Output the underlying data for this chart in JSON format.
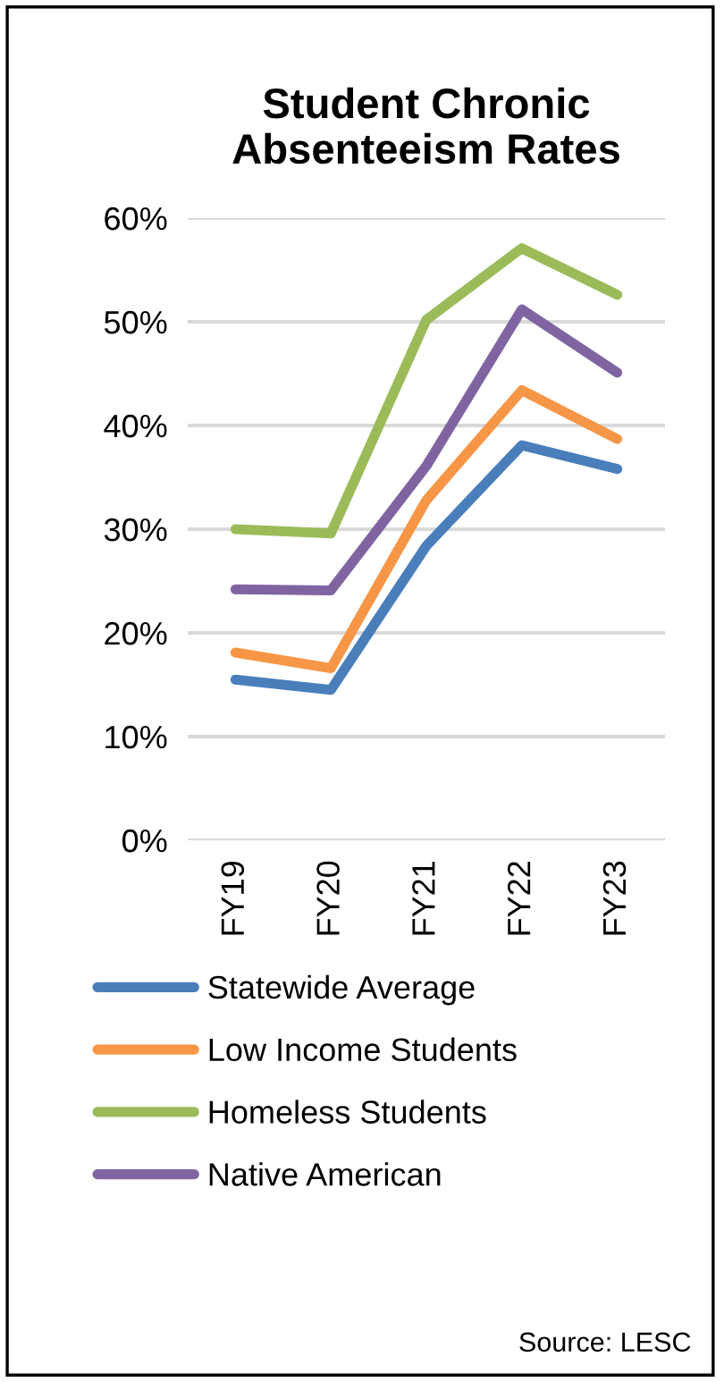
{
  "chart_data": {
    "type": "line",
    "title": "Student Chronic\nAbsenteeism Rates",
    "categories": [
      "FY19",
      "FY20",
      "FY21",
      "FY22",
      "FY23"
    ],
    "series": [
      {
        "name": "Statewide Average",
        "color": "#4a7ebb",
        "values": [
          15.5,
          14.5,
          28.4,
          38.1,
          35.8
        ]
      },
      {
        "name": "Low Income Students",
        "color": "#f79646",
        "values": [
          18.1,
          16.6,
          32.8,
          43.4,
          38.7
        ]
      },
      {
        "name": "Homeless Students",
        "color": "#9bbb59",
        "values": [
          30.0,
          29.6,
          50.2,
          57.1,
          52.6
        ]
      },
      {
        "name": "Native American",
        "color": "#8064a2",
        "values": [
          24.2,
          24.1,
          36.1,
          51.2,
          45.1
        ]
      }
    ],
    "ylim": [
      0,
      60
    ],
    "yticks": [
      {
        "value": 0,
        "label": "0%"
      },
      {
        "value": 10,
        "label": "10%"
      },
      {
        "value": 20,
        "label": "20%"
      },
      {
        "value": 30,
        "label": "30%"
      },
      {
        "value": 40,
        "label": "40%"
      },
      {
        "value": 50,
        "label": "50%"
      },
      {
        "value": 60,
        "label": "60%"
      }
    ],
    "grid": "y",
    "legend": "bottom",
    "marker": "none",
    "line_style": "solid",
    "annotations": [
      "Source: LESC"
    ]
  }
}
